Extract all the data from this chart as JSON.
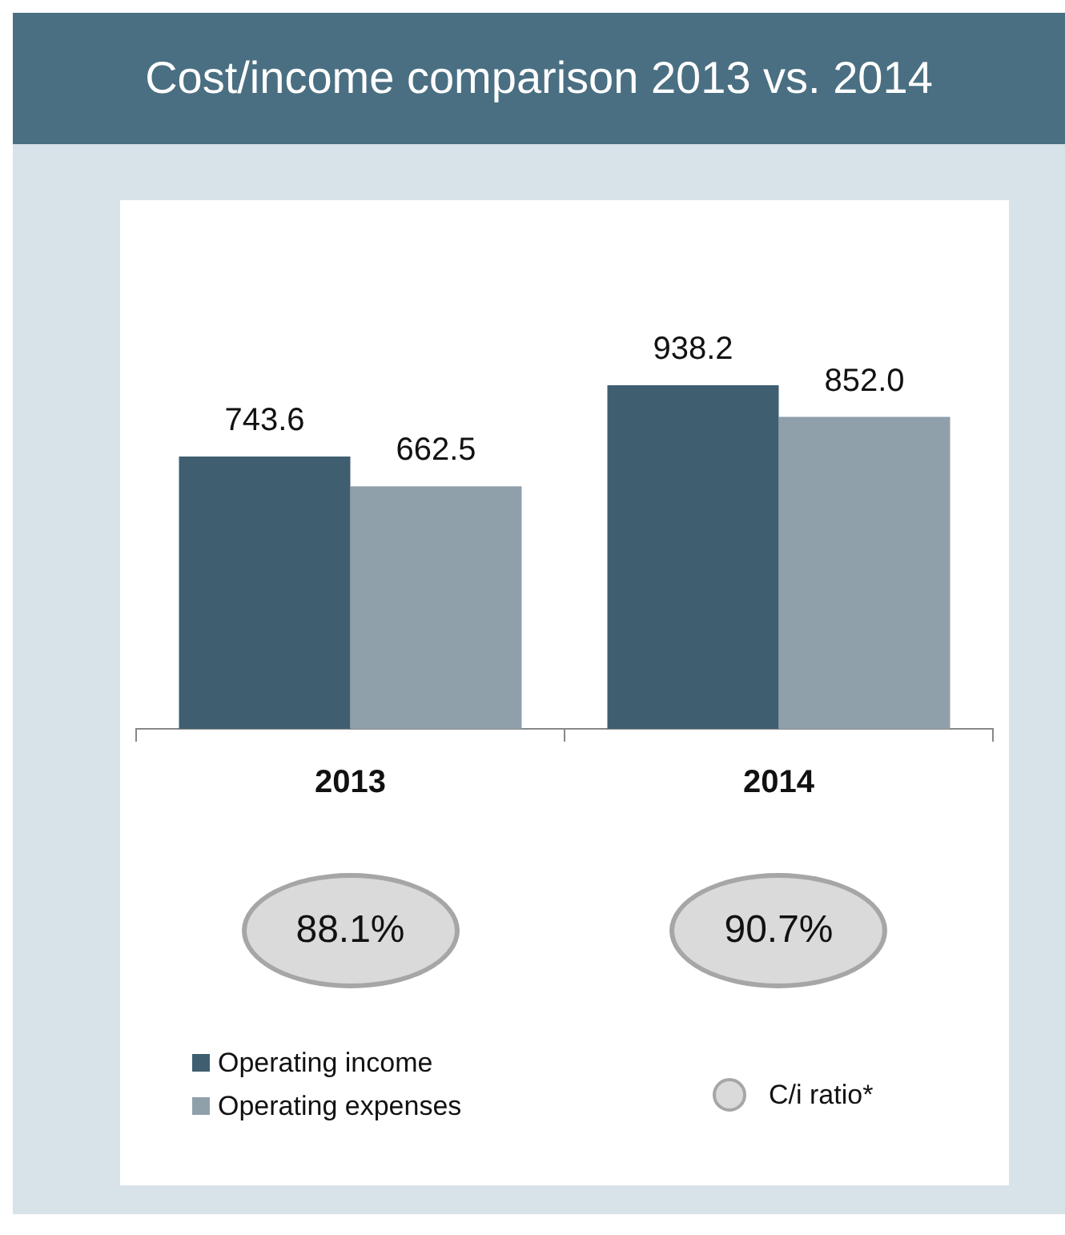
{
  "chart_data": {
    "type": "bar",
    "title": "Cost/income comparison 2013 vs. 2014",
    "categories": [
      "2013",
      "2014"
    ],
    "series": [
      {
        "name": "Operating income",
        "color": "#3f5f70",
        "values": [
          743.6,
          938.2
        ],
        "value_labels": [
          "743.6",
          "938.2"
        ]
      },
      {
        "name": "Operating expenses",
        "color": "#8fa0ab",
        "values": [
          662.5,
          852.0
        ],
        "value_labels": [
          "662.5",
          "852.0"
        ]
      }
    ],
    "legend": "bottom",
    "annotations": [
      "88.1%",
      "90.7%",
      "C/i ratio*"
    ]
  }
}
